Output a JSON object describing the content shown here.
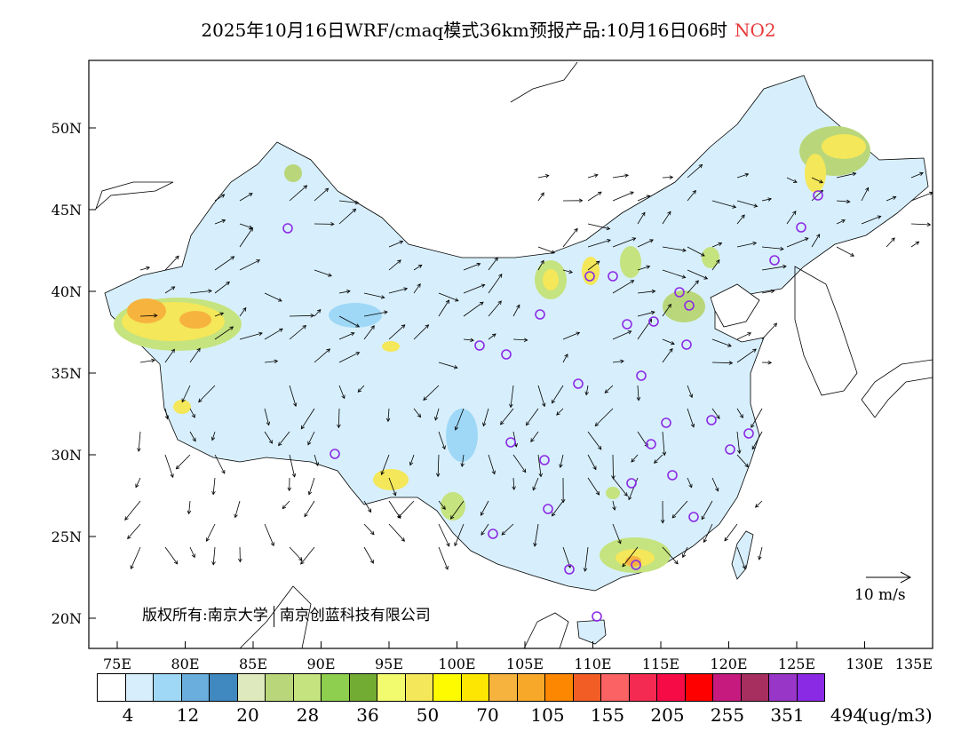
{
  "title": {
    "main": "2025年10月16日WRF/cmaq模式36km预报产品:10月16日06时",
    "species": "NO2"
  },
  "axes": {
    "lat_labels": [
      "50N",
      "45N",
      "40N",
      "35N",
      "30N",
      "25N",
      "20N"
    ],
    "lon_labels": [
      "75E",
      "80E",
      "85E",
      "90E",
      "95E",
      "100E",
      "105E",
      "110E",
      "115E",
      "120E",
      "125E",
      "130E",
      "135E"
    ]
  },
  "copyright": {
    "left": "版权所有:南京大学",
    "right": "南京创蓝科技有限公司"
  },
  "wind_reference": {
    "label": "10 m/s"
  },
  "legend": {
    "colors": [
      "#ffffff",
      "#d7effc",
      "#9fd8f6",
      "#6aaedd",
      "#3f88c0",
      "#deeabd",
      "#b9d77a",
      "#c5e37e",
      "#8ecf4f",
      "#73ac33",
      "#f2fb6e",
      "#f4e759",
      "#fefb00",
      "#fde601",
      "#f6b33e",
      "#f8a829",
      "#fd8700",
      "#f25d26",
      "#fb6263",
      "#f42a52",
      "#f70b47",
      "#ff0000",
      "#c61a7e",
      "#a72f5f",
      "#9836c7",
      "#8b2ae5"
    ],
    "labels": [
      "4",
      "12",
      "20",
      "28",
      "36",
      "50",
      "70",
      "105",
      "155",
      "205",
      "255",
      "351",
      "494"
    ],
    "units": "(ug/m3)"
  }
}
